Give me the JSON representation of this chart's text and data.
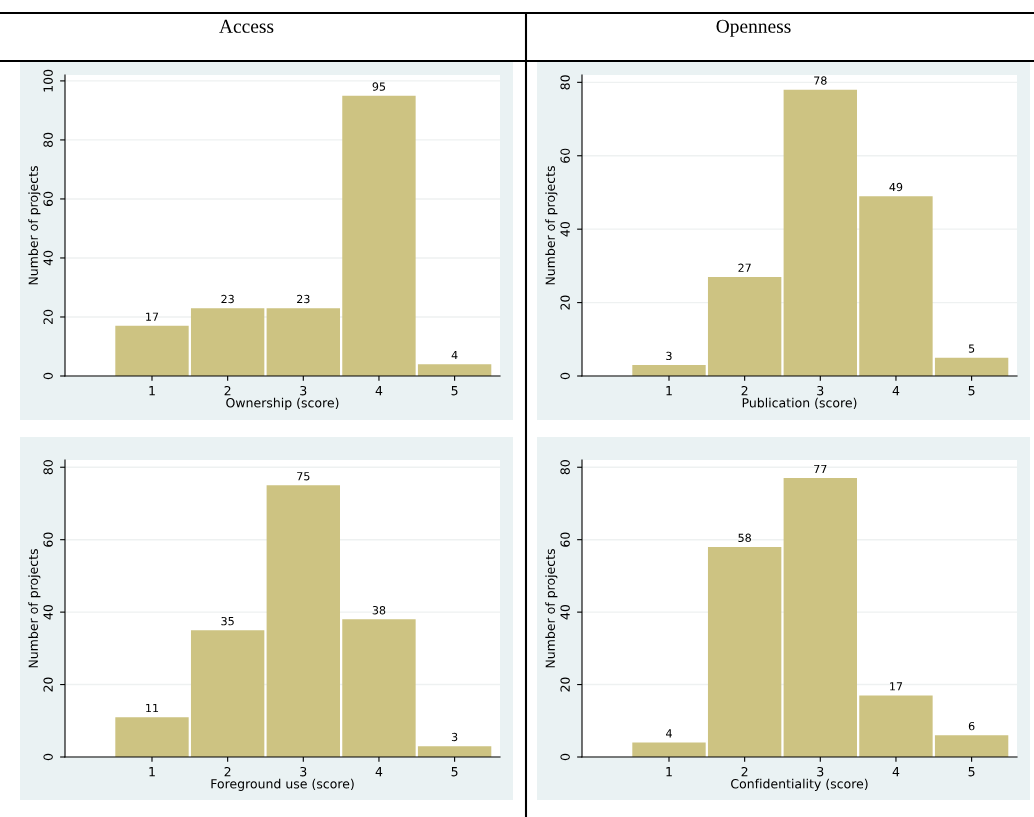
{
  "chart_data": [
    {
      "type": "bar",
      "title": "Access",
      "categories": [
        "1",
        "2",
        "3",
        "4",
        "5"
      ],
      "xlabel": "Ownership (score)",
      "ylabel": "Number of projects",
      "color": "#cdc382",
      "values": [
        17,
        23,
        23,
        95,
        4
      ],
      "ylim": [
        0,
        102
      ],
      "yticks": [
        0,
        20,
        40,
        60,
        80,
        100
      ],
      "grid": "y",
      "data_labels": true
    },
    {
      "type": "bar",
      "title": "Openness",
      "categories": [
        "1",
        "2",
        "3",
        "4",
        "5"
      ],
      "xlabel": "Publication (score)",
      "ylabel": "Number of projects",
      "color": "#cdc382",
      "values": [
        3,
        27,
        78,
        49,
        5
      ],
      "ylim": [
        0,
        82
      ],
      "yticks": [
        0,
        20,
        40,
        60,
        80
      ],
      "grid": "y",
      "data_labels": true
    },
    {
      "type": "bar",
      "categories": [
        "1",
        "2",
        "3",
        "4",
        "5"
      ],
      "xlabel": "Foreground use (score)",
      "ylabel": "Number of projects",
      "color": "#cdc382",
      "values": [
        11,
        35,
        75,
        38,
        3
      ],
      "ylim": [
        0,
        82
      ],
      "yticks": [
        0,
        20,
        40,
        60,
        80
      ],
      "grid": "y",
      "data_labels": true
    },
    {
      "type": "bar",
      "categories": [
        "1",
        "2",
        "3",
        "4",
        "5"
      ],
      "xlabel": "Confidentiality (score)",
      "ylabel": "Number of projects",
      "color": "#cdc382",
      "values": [
        4,
        58,
        77,
        17,
        6
      ],
      "ylim": [
        0,
        82
      ],
      "yticks": [
        0,
        20,
        40,
        60,
        80
      ],
      "grid": "y",
      "data_labels": true
    }
  ]
}
